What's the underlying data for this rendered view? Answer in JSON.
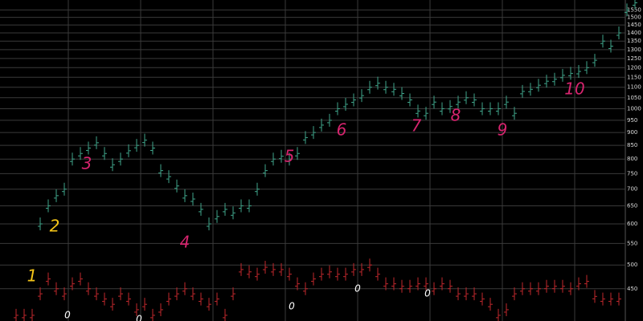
{
  "chart_data": {
    "type": "ohlc",
    "log_scale": true,
    "grid": true,
    "ylim": [
      390,
      1620
    ],
    "yticks": [
      450,
      500,
      550,
      600,
      650,
      700,
      750,
      800,
      850,
      900,
      950,
      1000,
      1050,
      1100,
      1150,
      1200,
      1250,
      1300,
      1350,
      1400,
      1450,
      1500,
      1550
    ],
    "series": [
      {
        "color": "#3fa58a",
        "values": [
          600,
          650,
          680,
          700,
          800,
          820,
          840,
          860,
          820,
          780,
          800,
          830,
          850,
          870,
          840,
          760,
          740,
          710,
          680,
          670,
          640,
          600,
          620,
          640,
          630,
          650,
          650,
          700,
          760,
          800,
          810,
          800,
          820,
          880,
          900,
          930,
          950,
          1000,
          1020,
          1040,
          1060,
          1100,
          1120,
          1100,
          1090,
          1070,
          1040,
          990,
          980,
          1030,
          1000,
          1010,
          1030,
          1050,
          1040,
          1000,
          1000,
          1000,
          1030,
          980,
          1080,
          1090,
          1110,
          1130,
          1140,
          1160,
          1170,
          1180,
          1200,
          1240,
          1350,
          1320,
          1400,
          1550,
          1600
        ]
      },
      {
        "color": "#c0282d",
        "values": [
          400,
          400,
          400,
          440,
          470,
          450,
          440,
          460,
          470,
          450,
          440,
          430,
          420,
          440,
          430,
          410,
          420,
          400,
          410,
          430,
          440,
          450,
          440,
          430,
          420,
          430,
          400,
          440,
          490,
          485,
          480,
          495,
          490,
          490,
          480,
          460,
          450,
          470,
          480,
          485,
          480,
          480,
          490,
          490,
          500,
          480,
          460,
          460,
          455,
          455,
          460,
          460,
          450,
          460,
          455,
          440,
          440,
          440,
          430,
          420,
          400,
          410,
          440,
          450,
          450,
          450,
          455,
          455,
          455,
          450,
          460,
          465,
          435,
          430,
          430,
          430
        ]
      }
    ],
    "annotations": [
      {
        "text": "1",
        "color": "#f5c518"
      },
      {
        "text": "2",
        "color": "#f5c518"
      },
      {
        "text": "3",
        "color": "#d6246e"
      },
      {
        "text": "4",
        "color": "#d6246e"
      },
      {
        "text": "5",
        "color": "#d6246e"
      },
      {
        "text": "6",
        "color": "#d6246e"
      },
      {
        "text": "7",
        "color": "#d6246e"
      },
      {
        "text": "8",
        "color": "#d6246e"
      },
      {
        "text": "9",
        "color": "#d6246e"
      },
      {
        "text": "10",
        "color": "#d6246e"
      },
      {
        "text": "0",
        "color": "#ffffff"
      },
      {
        "text": "0",
        "color": "#ffffff"
      },
      {
        "text": "0",
        "color": "#ffffff"
      },
      {
        "text": "0",
        "color": "#ffffff"
      },
      {
        "text": "0",
        "color": "#ffffff"
      }
    ]
  }
}
